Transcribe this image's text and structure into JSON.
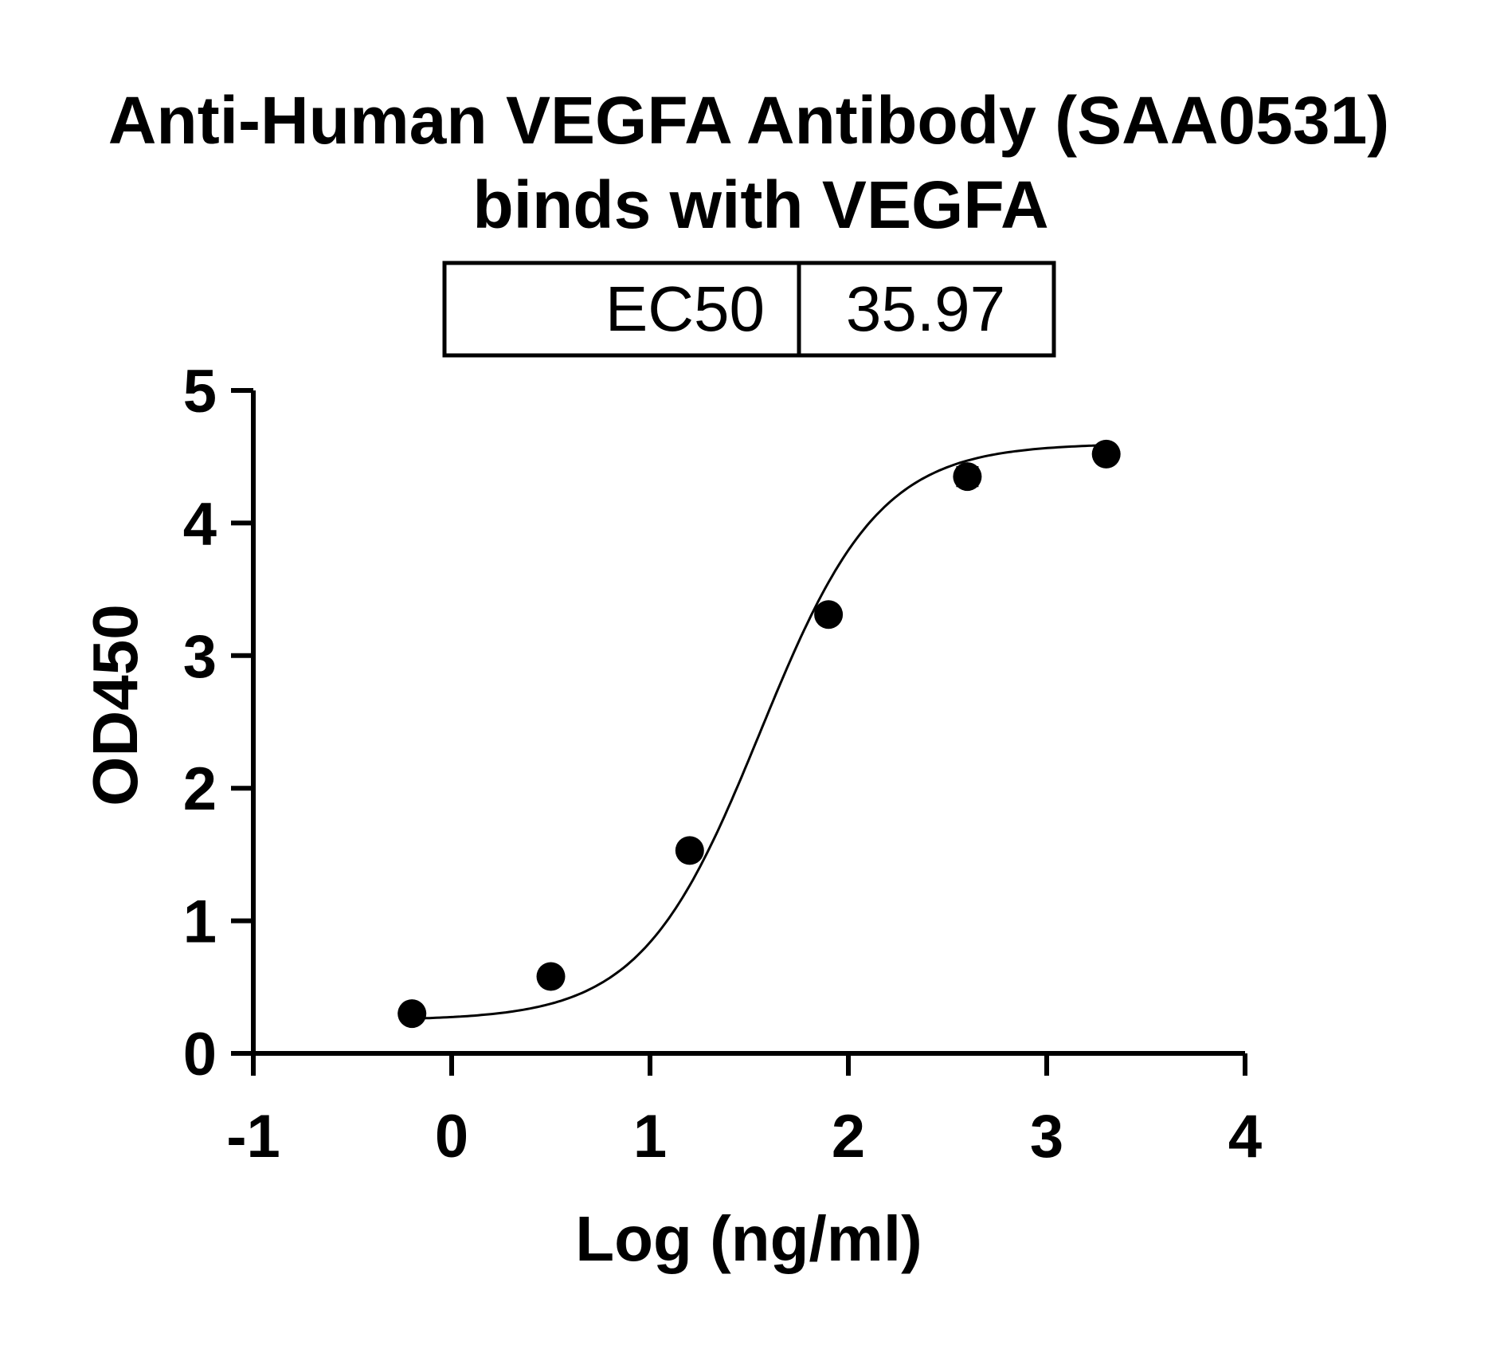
{
  "chart_data": {
    "type": "scatter",
    "title": "Anti-Human VEGFA Antibody (SAA0531)",
    "subtitle": "binds with VEGFA",
    "xlabel": "Log (ng/ml)",
    "ylabel": "OD450",
    "xlim": [
      -1,
      4
    ],
    "ylim": [
      0,
      5
    ],
    "x_ticks": [
      "-1",
      "0",
      "1",
      "2",
      "3",
      "4"
    ],
    "y_ticks": [
      "0",
      "1",
      "2",
      "3",
      "4",
      "5"
    ],
    "grid": false,
    "legend": "none",
    "fit": "4-parameter logistic curve",
    "ec50": {
      "label": "EC50",
      "value": "35.97"
    },
    "series": [
      {
        "x": [
          -0.2,
          0.5,
          1.2,
          1.9,
          2.6,
          3.3
        ],
        "y": [
          0.3,
          0.58,
          1.53,
          3.31,
          4.35,
          4.52
        ],
        "error": [
          0.02,
          0.03,
          0.04,
          0.04,
          0.07,
          0.03
        ]
      }
    ],
    "colors": {
      "points": "#000000",
      "curve": "#000000",
      "axes": "#000000"
    }
  }
}
